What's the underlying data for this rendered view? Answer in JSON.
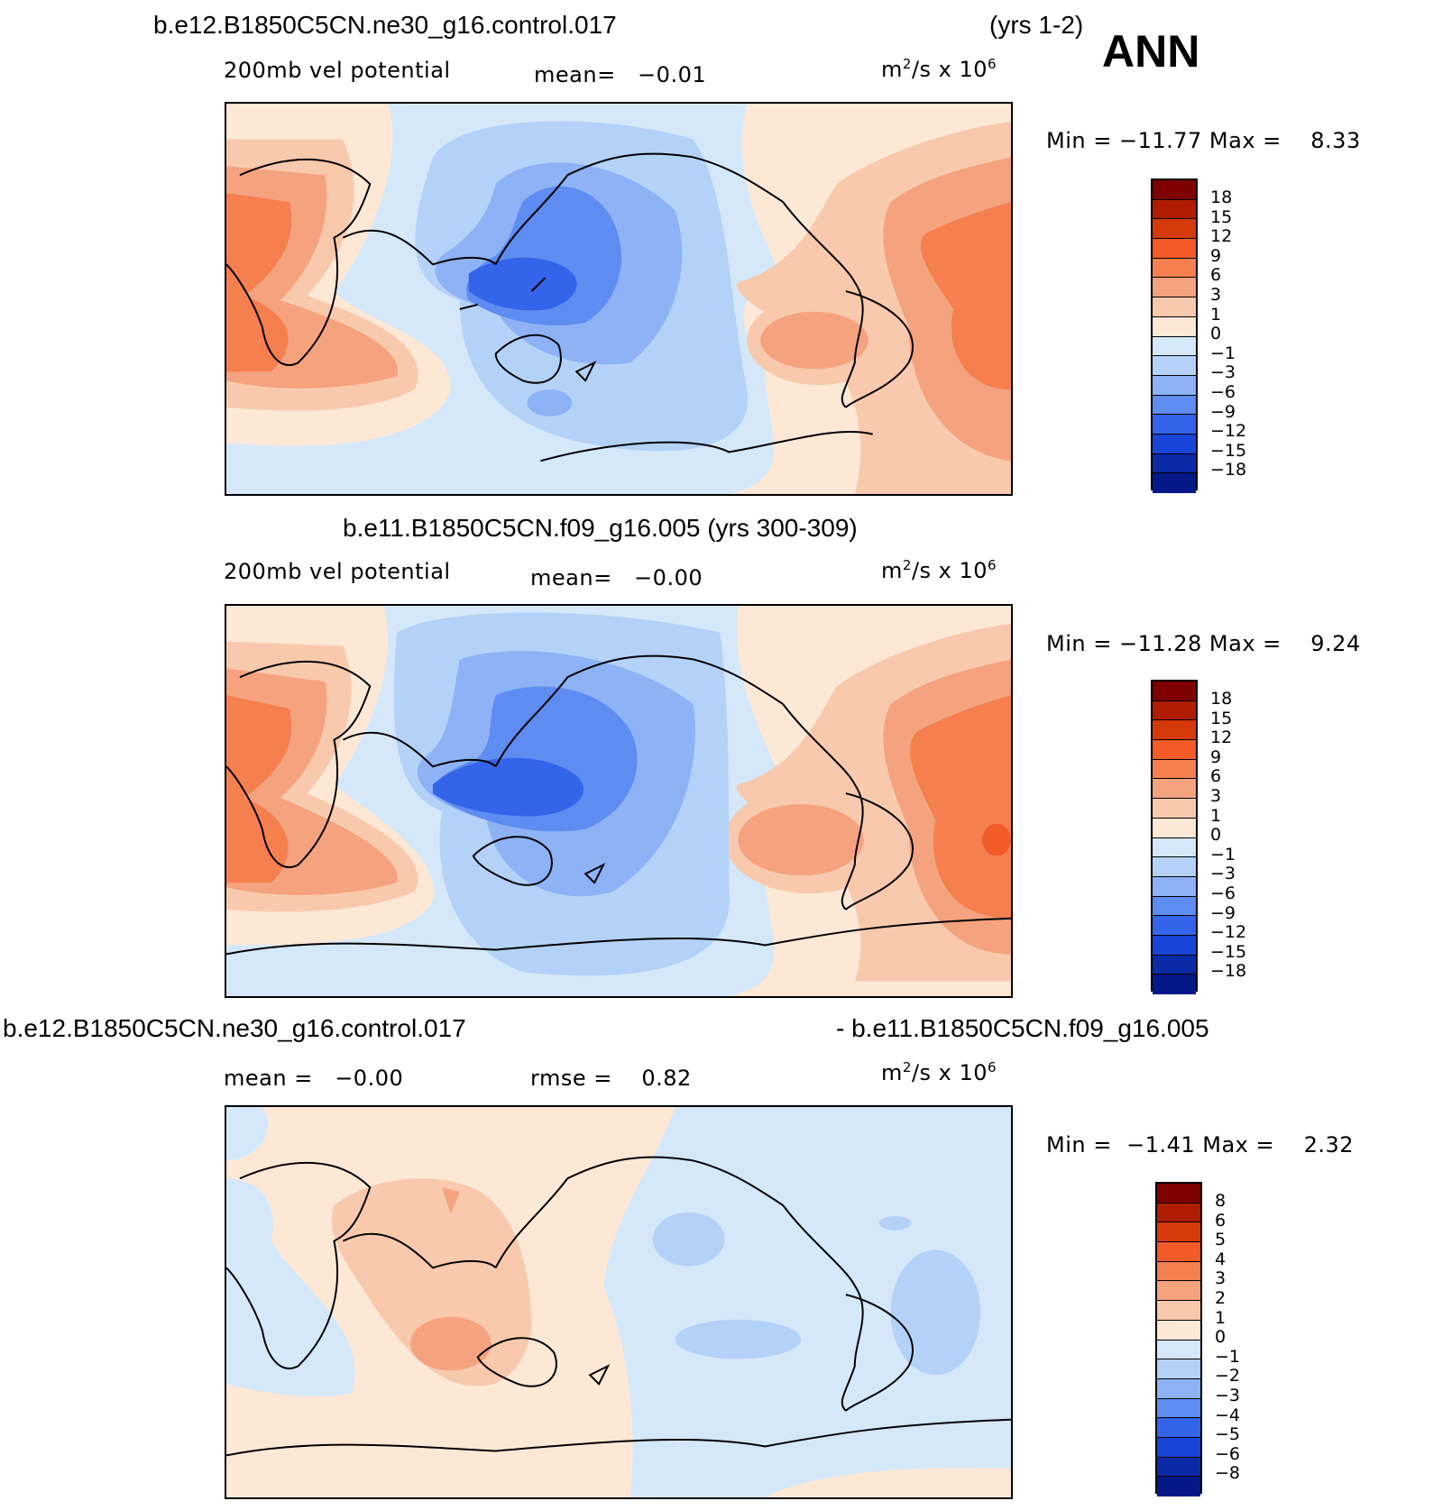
{
  "season": "ANN",
  "years_top": "(yrs 1-2)",
  "panels": [
    {
      "case": "b.e12.B1850C5CN.ne30_g16.control.017",
      "variable": "200mb vel potential",
      "stat": "mean=   −0.01",
      "units_base": "m",
      "units_exp": "2",
      "units_mid": "/s x 10",
      "units_exp2": "6",
      "minmax": "Min = −11.77 Max =    8.33",
      "contour_levels": [
        "18",
        "15",
        "12",
        "9",
        "6",
        "3",
        "1",
        "0",
        "−1",
        "−3",
        "−6",
        "−9",
        "−12",
        "−15",
        "−18"
      ]
    },
    {
      "case": "b.e11.B1850C5CN.f09_g16.005 (yrs 300-309)",
      "variable": "200mb vel potential",
      "stat": "mean=   −0.00",
      "units_base": "m",
      "units_exp": "2",
      "units_mid": "/s x 10",
      "units_exp2": "6",
      "minmax": "Min = −11.28 Max =    9.24",
      "contour_levels": [
        "18",
        "15",
        "12",
        "9",
        "6",
        "3",
        "1",
        "0",
        "−1",
        "−3",
        "−6",
        "−9",
        "−12",
        "−15",
        "−18"
      ]
    },
    {
      "case_left": "b.e12.B1850C5CN.ne30_g16.control.017",
      "case_right": "- b.e11.B1850C5CN.f09_g16.005",
      "stat": "mean =   −0.00",
      "rmse": "rmse =    0.82",
      "units_base": "m",
      "units_exp": "2",
      "units_mid": "/s x 10",
      "units_exp2": "6",
      "minmax": "Min =  −1.41 Max =    2.32",
      "contour_levels": [
        "8",
        "6",
        "5",
        "4",
        "3",
        "2",
        "1",
        "0",
        "−1",
        "−2",
        "−3",
        "−4",
        "−5",
        "−6",
        "−8"
      ]
    }
  ],
  "colors": {
    "scale": [
      "#7f0000",
      "#b01c00",
      "#d63a0a",
      "#f25a28",
      "#f57f4e",
      "#f5a27e",
      "#f9c9ad",
      "#fde8d6",
      "#d4e8fa",
      "#b4d2f8",
      "#8db2f6",
      "#5e8cf1",
      "#3464ea",
      "#1844d8",
      "#0b2aa8",
      "#041888"
    ]
  }
}
